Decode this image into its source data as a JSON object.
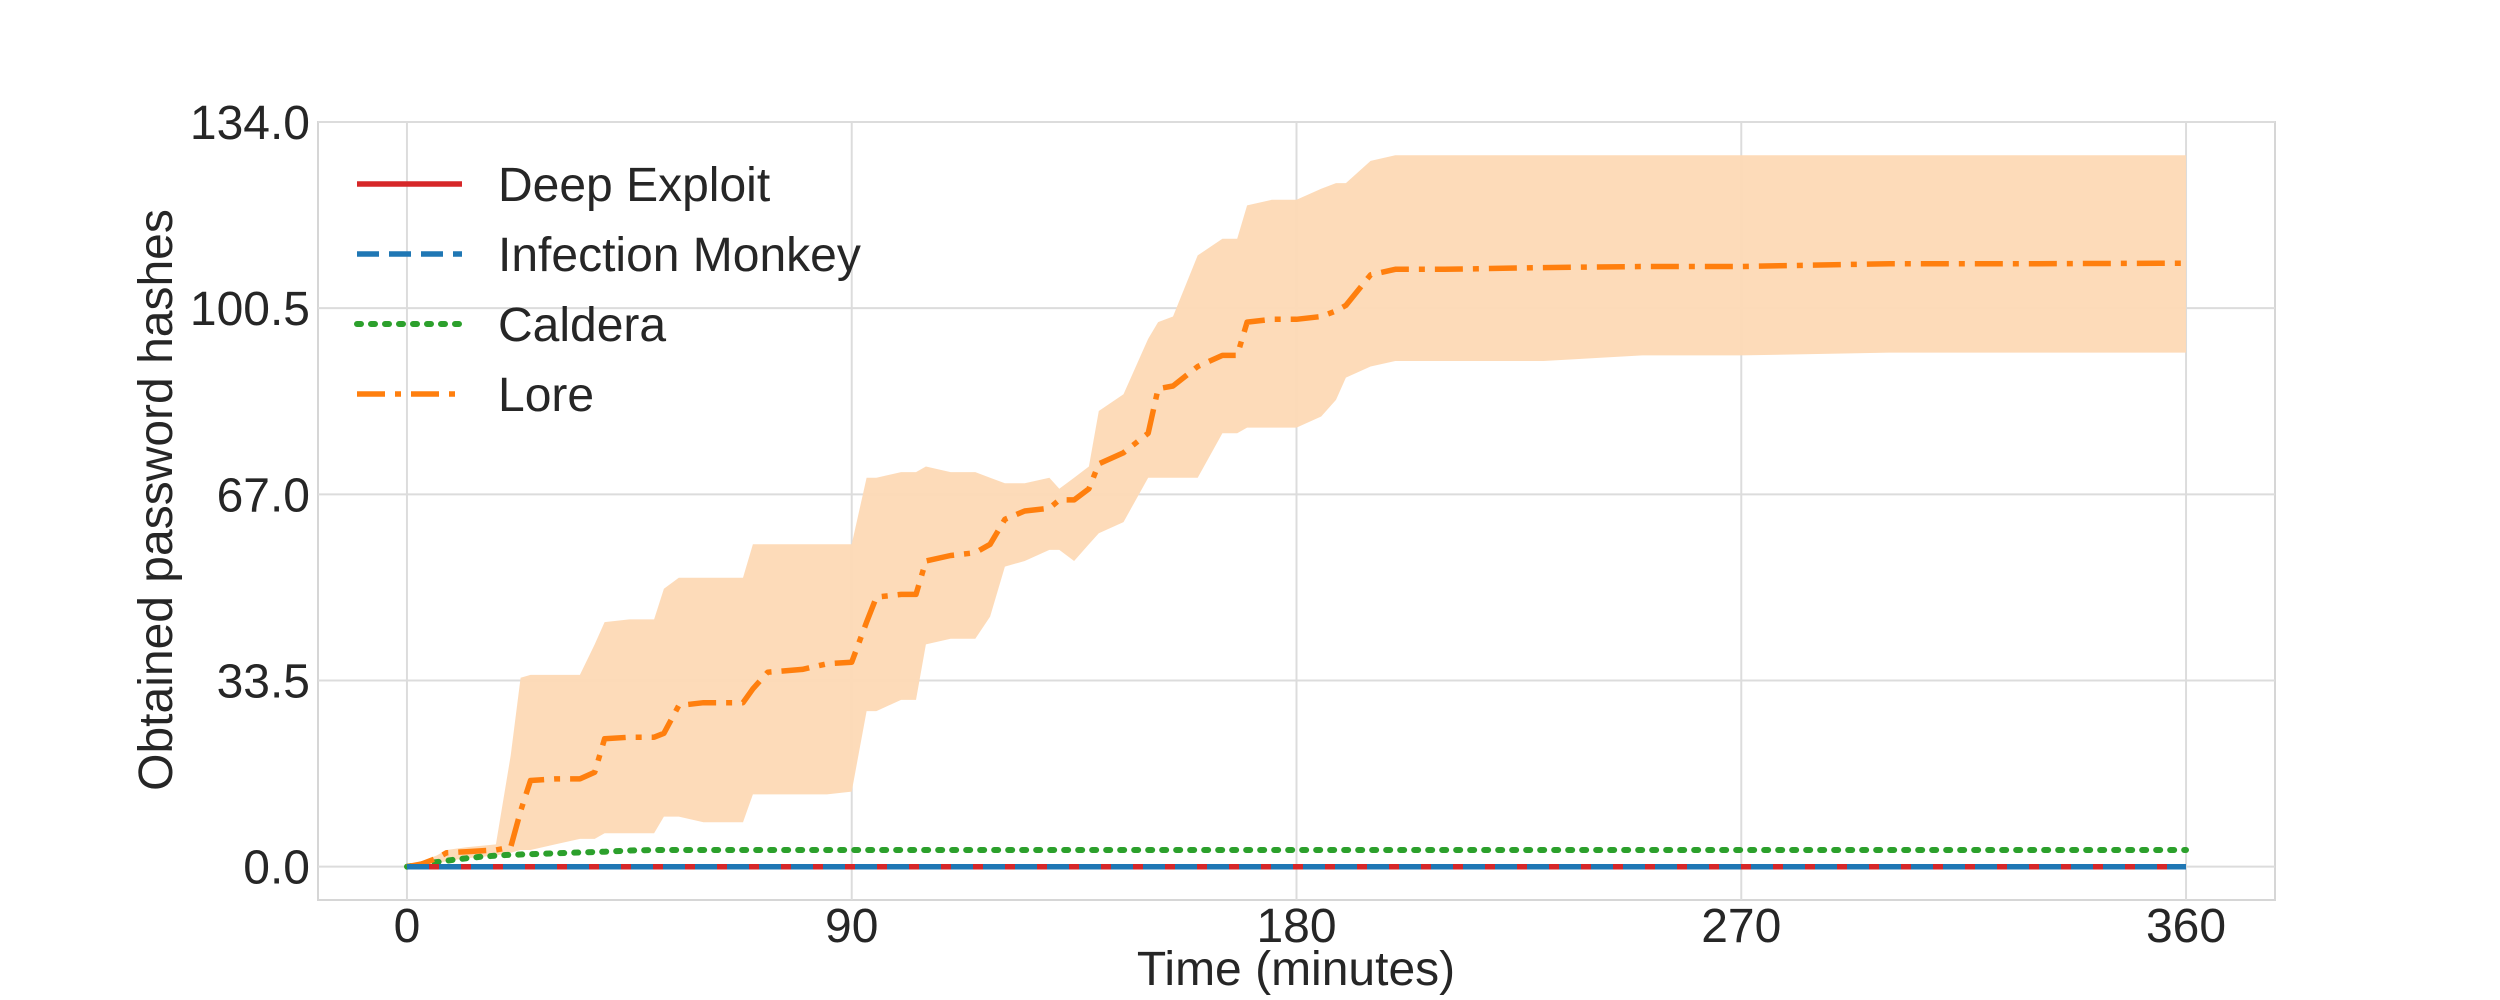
{
  "chart_data": {
    "type": "line",
    "title": "",
    "xlabel": "Time (minutes)",
    "ylabel": "Obtained password hashes",
    "xlim": [
      -18,
      378
    ],
    "ylim": [
      -6,
      134
    ],
    "xticks": [
      0,
      90,
      180,
      270,
      360
    ],
    "xtick_labels": [
      "0",
      "90",
      "180",
      "270",
      "360"
    ],
    "yticks": [
      0,
      33.5,
      67,
      100.5,
      134
    ],
    "ytick_labels": [
      "0.0",
      "33.5",
      "67.0",
      "100.5",
      "134.0"
    ],
    "grid": true,
    "legend_position": "top-left",
    "series": [
      {
        "name": "Deep Exploit",
        "color": "#d62728",
        "style": "solid",
        "x": [
          0,
          360
        ],
        "y": [
          0,
          0
        ]
      },
      {
        "name": "Infection Monkey",
        "color": "#1f77b4",
        "style": "dashed",
        "x": [
          0,
          360
        ],
        "y": [
          0,
          0
        ]
      },
      {
        "name": "Caldera",
        "color": "#2ca02c",
        "style": "dotted",
        "x": [
          0,
          5,
          10,
          15,
          20,
          30,
          40,
          45,
          50,
          55,
          60,
          90,
          180,
          270,
          360
        ],
        "y": [
          0,
          0.7,
          1.3,
          1.8,
          2.1,
          2.4,
          2.7,
          2.9,
          3.0,
          3.0,
          3.0,
          3.0,
          3.0,
          3.0,
          3.0
        ]
      },
      {
        "name": "Lore",
        "color": "#ff7f0e",
        "style": "dashdot",
        "x": [
          0,
          3,
          6,
          8,
          12,
          18,
          21,
          23,
          25,
          30,
          35,
          38,
          40,
          45,
          50,
          52,
          55,
          60,
          68,
          70,
          73,
          80,
          85,
          90,
          93,
          95,
          100,
          103,
          105,
          110,
          115,
          118,
          121,
          125,
          130,
          132,
          135,
          138,
          140,
          145,
          150,
          152,
          155,
          160,
          165,
          168,
          170,
          175,
          180,
          185,
          188,
          190,
          195,
          200,
          210,
          230,
          250,
          270,
          300,
          330,
          360
        ],
        "y": [
          0,
          0.5,
          1.5,
          2.5,
          2.7,
          3.0,
          3.5,
          10,
          15.5,
          15.8,
          15.8,
          17,
          23,
          23.3,
          23.3,
          24,
          29,
          29.5,
          29.5,
          32,
          35,
          35.5,
          36.5,
          36.8,
          44,
          48.5,
          49,
          49,
          55,
          56,
          56.5,
          58,
          62.5,
          64,
          64.5,
          66,
          66,
          68,
          72.5,
          74.5,
          78,
          86,
          86.5,
          90,
          92,
          92,
          98,
          98.5,
          98.5,
          99,
          100,
          101,
          106.5,
          107.5,
          107.5,
          107.8,
          108,
          108,
          108.5,
          108.5,
          108.6
        ],
        "band_upper": [
          0,
          1,
          2,
          3,
          3.5,
          4,
          20,
          34,
          34.5,
          34.5,
          34.5,
          40,
          44,
          44.5,
          44.5,
          50,
          52,
          52,
          52,
          58,
          58,
          58,
          58,
          58,
          70,
          70,
          71,
          71,
          72,
          71,
          71,
          70,
          69,
          69,
          70,
          68,
          70,
          72,
          82,
          85,
          95,
          98,
          99,
          110,
          113,
          113,
          119,
          120,
          120,
          122,
          123,
          123,
          127,
          128,
          128,
          128,
          128,
          128,
          128,
          128,
          128
        ],
        "band_lower": [
          0,
          0,
          0.5,
          1,
          1.5,
          2,
          2.5,
          3,
          3,
          4,
          5,
          5,
          6,
          6,
          6,
          9,
          9,
          8,
          8,
          13,
          13,
          13,
          13,
          13.5,
          28,
          28,
          30,
          30,
          40,
          41,
          41,
          45,
          54,
          55,
          57,
          57,
          55,
          58,
          60,
          62,
          70,
          70,
          70,
          70,
          78,
          78,
          79,
          79,
          79,
          81,
          84,
          88,
          90,
          91,
          91,
          91,
          92,
          92,
          92.5,
          92.5,
          92.5
        ],
        "band_color": "#fdd9b5"
      }
    ]
  }
}
